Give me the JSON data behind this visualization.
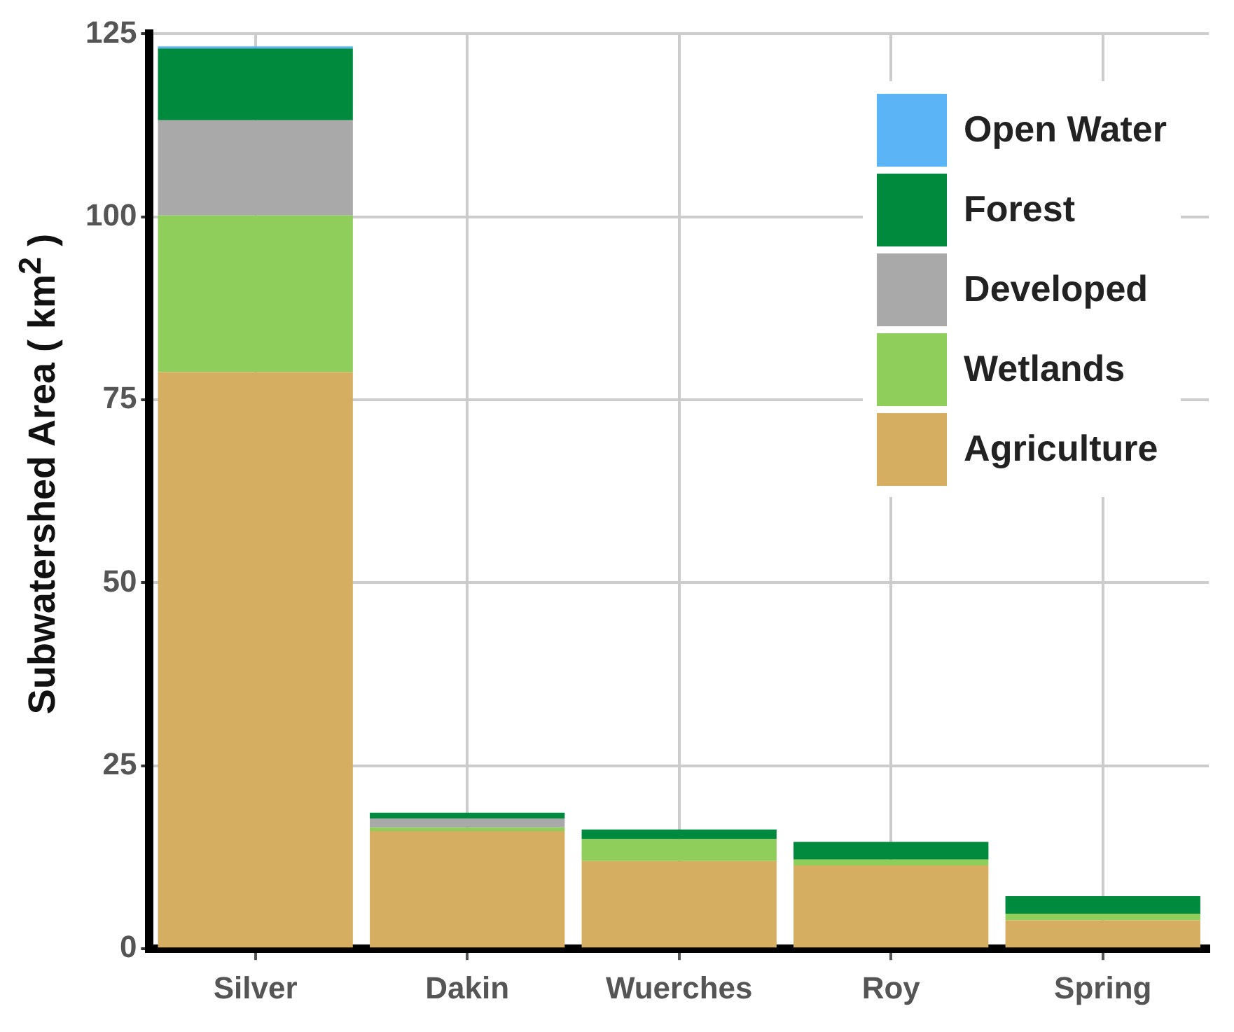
{
  "chart_data": {
    "type": "bar",
    "ylabel": "Subwatershed Area ( km$^{2}$ )",
    "categories": [
      "Silver",
      "Dakin",
      "Wuerches",
      "Roy",
      "Spring"
    ],
    "stacked": true,
    "series": [
      {
        "name": "Agriculture",
        "color": "#d6ae62",
        "values": [
          78.8,
          16.1,
          12.0,
          11.4,
          3.9
        ]
      },
      {
        "name": "Wetlands",
        "color": "#8fce5a",
        "values": [
          21.4,
          0.5,
          3.0,
          0.8,
          0.9
        ]
      },
      {
        "name": "Developed",
        "color": "#a9a9a9",
        "values": [
          13.0,
          1.2,
          null,
          null,
          null
        ]
      },
      {
        "name": "Forest",
        "color": "#008a3e",
        "values": [
          9.8,
          0.8,
          1.3,
          2.4,
          2.4
        ]
      },
      {
        "name": "Open Water",
        "color": "#5ab4f5",
        "values": [
          0.3,
          null,
          null,
          null,
          null
        ]
      }
    ],
    "ylim": [
      0,
      125
    ],
    "yticks": [
      0,
      25,
      50,
      75,
      100,
      125
    ],
    "grid": true,
    "legend": "top right"
  }
}
